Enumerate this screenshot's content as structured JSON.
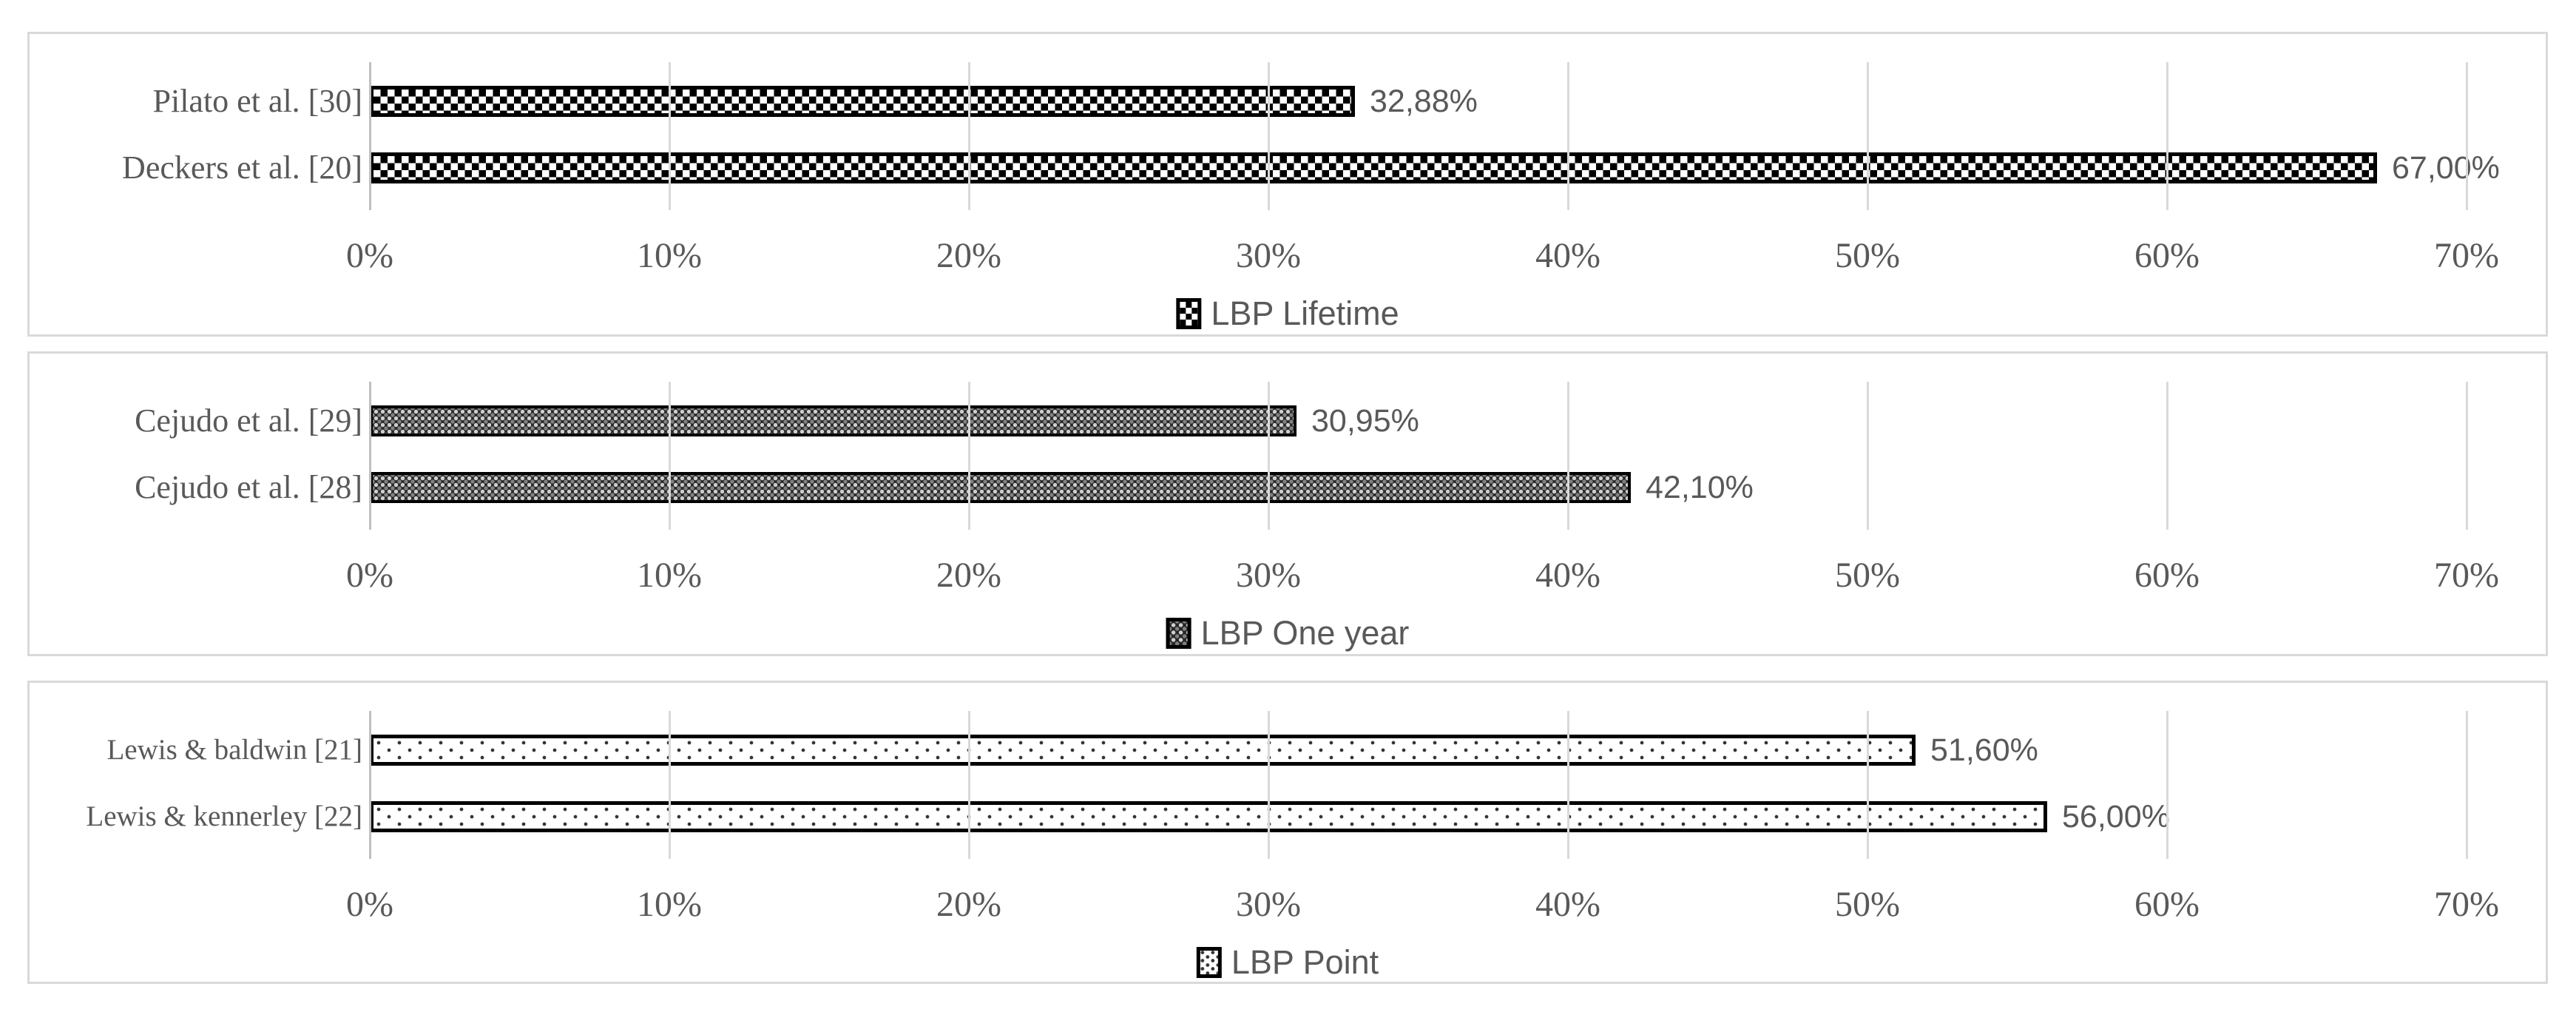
{
  "colors": {
    "panel_border": "#d9d9d9",
    "gridline": "#d9d9d9",
    "axis_line": "#bfbfbf",
    "text_gray": "#595959",
    "bar_black": "#000000",
    "background": "#ffffff"
  },
  "chart_data": [
    {
      "type": "bar",
      "orientation": "horizontal",
      "legend": "LBP Lifetime",
      "legend_position": "bottom-center",
      "pattern": "checkerboard",
      "categories": [
        "Pilato et al. [30]",
        "Deckers et al. [20]"
      ],
      "values": [
        32.88,
        67.0
      ],
      "value_labels": [
        "32,88%",
        "67,00%"
      ],
      "x_ticks": [
        "0%",
        "10%",
        "20%",
        "30%",
        "40%",
        "50%",
        "60%",
        "70%"
      ],
      "xlim": [
        0,
        70
      ],
      "grid": true
    },
    {
      "type": "bar",
      "orientation": "horizontal",
      "legend": "LBP One year",
      "legend_position": "bottom-center",
      "pattern": "dark-dots",
      "categories": [
        "Cejudo et al. [29]",
        "Cejudo et al. [28]"
      ],
      "values": [
        30.95,
        42.1
      ],
      "value_labels": [
        "30,95%",
        "42,10%"
      ],
      "x_ticks": [
        "0%",
        "10%",
        "20%",
        "30%",
        "40%",
        "50%",
        "60%",
        "70%"
      ],
      "xlim": [
        0,
        70
      ],
      "grid": true
    },
    {
      "type": "bar",
      "orientation": "horizontal",
      "legend": "LBP Point",
      "legend_position": "bottom-center",
      "pattern": "light-dots",
      "categories": [
        "Lewis & baldwin [21]",
        "Lewis & kennerley [22]"
      ],
      "values": [
        51.6,
        56.0
      ],
      "value_labels": [
        "51,60%",
        "56,00%"
      ],
      "x_ticks": [
        "0%",
        "10%",
        "20%",
        "30%",
        "40%",
        "50%",
        "60%",
        "70%"
      ],
      "xlim": [
        0,
        70
      ],
      "grid": true
    }
  ]
}
